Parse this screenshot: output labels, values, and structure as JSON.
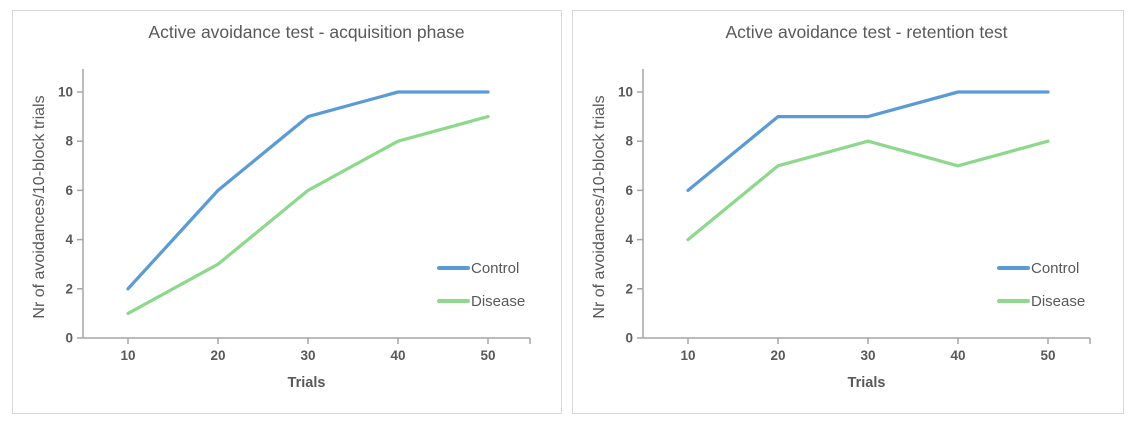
{
  "colors": {
    "control_line": "#5B9BD5",
    "disease_line": "#8DD88D",
    "axis": "#A6A6A6",
    "label_text": "#595959",
    "panel_border": "#D9D9D9",
    "background": "#FFFFFF"
  },
  "chart_data": [
    {
      "type": "line",
      "title": "Active avoidance test - acquisition phase",
      "xlabel": "Trials",
      "ylabel": "Nr of avoidances/10-block trials",
      "categories": [
        10,
        20,
        30,
        40,
        50
      ],
      "y_ticks": [
        0,
        2,
        4,
        6,
        8,
        10
      ],
      "ylim": [
        0,
        10
      ],
      "grid": false,
      "legend_position": "inside-right",
      "series": [
        {
          "name": "Control",
          "color": "#5B9BD5",
          "values": [
            2,
            6,
            9,
            10,
            10
          ]
        },
        {
          "name": "Disease",
          "color": "#8DD88D",
          "values": [
            1,
            3,
            6,
            8,
            9
          ]
        }
      ]
    },
    {
      "type": "line",
      "title": "Active avoidance test - retention test",
      "xlabel": "Trials",
      "ylabel": "Nr of avoidances/10-block trials",
      "categories": [
        10,
        20,
        30,
        40,
        50
      ],
      "y_ticks": [
        0,
        2,
        4,
        6,
        8,
        10
      ],
      "ylim": [
        0,
        10
      ],
      "grid": false,
      "legend_position": "inside-right",
      "series": [
        {
          "name": "Control",
          "color": "#5B9BD5",
          "values": [
            6,
            9,
            9,
            10,
            10
          ]
        },
        {
          "name": "Disease",
          "color": "#8DD88D",
          "values": [
            4,
            7,
            8,
            7,
            8
          ]
        }
      ]
    }
  ]
}
